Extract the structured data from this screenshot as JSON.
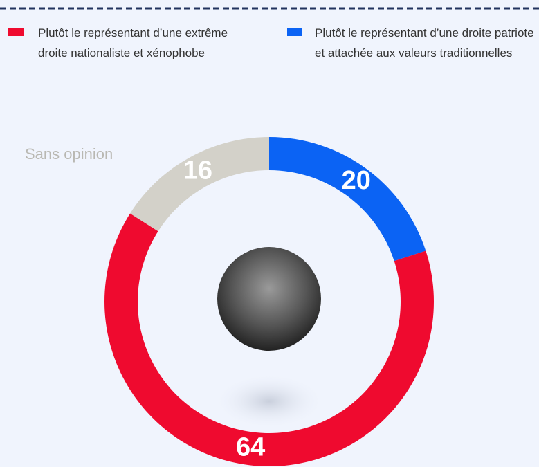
{
  "chart_data": {
    "type": "pie",
    "categories": [
      "Plutôt le représentant d’une extrême droite nationaliste et xénophobe",
      "Plutôt le représentant d’une droite patriote et attachée aux valeurs traditionnelles",
      "Sans opinion"
    ],
    "values": [
      64,
      20,
      16
    ],
    "colors": [
      "#ef0a2f",
      "#0b63f4",
      "#d3d1c9"
    ],
    "legend_items": [
      0,
      1
    ],
    "draw_order": [
      1,
      0,
      2
    ]
  }
}
